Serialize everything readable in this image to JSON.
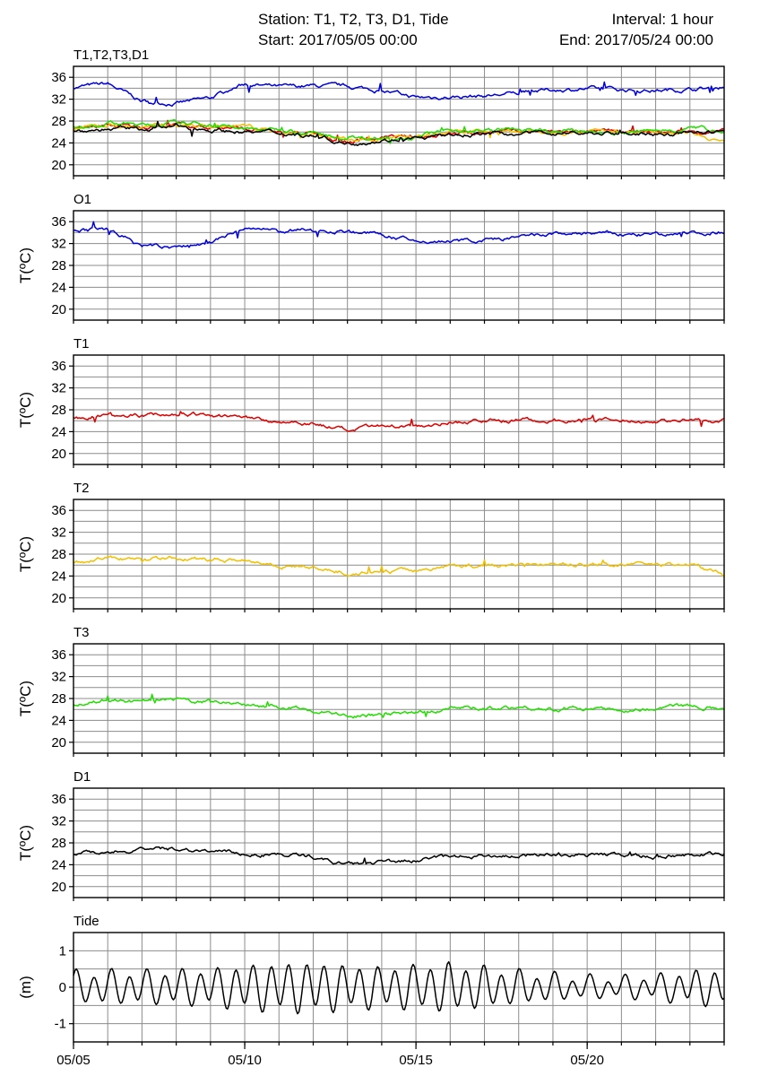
{
  "header": {
    "station": "Station: T1, T2, T3, D1, Tide",
    "start": "Start: 2017/05/05 00:00",
    "interval": "Interval: 1 hour",
    "end": "End: 2017/05/24 00:00"
  },
  "chart_data": [
    {
      "type": "line",
      "title": "T1,T2,T3,D1",
      "ylabel": "",
      "xlim": [
        "2017/05/05 00:00",
        "2017/05/24 00:00"
      ],
      "ylim": [
        18,
        38
      ],
      "yticks": [
        20,
        24,
        28,
        32,
        36
      ],
      "grid": true,
      "x": [
        "05/05",
        "05/06",
        "05/07",
        "05/08",
        "05/09",
        "05/10",
        "05/11",
        "05/12",
        "05/13",
        "05/14",
        "05/15",
        "05/16",
        "05/17",
        "05/18",
        "05/19",
        "05/20",
        "05/21",
        "05/22",
        "05/23",
        "05/24"
      ],
      "series": [
        {
          "color": "#0000dd",
          "values": [
            34.2,
            34.8,
            31.6,
            31.2,
            32.2,
            34.8,
            34.2,
            34.4,
            34.3,
            33.6,
            32.3,
            32.4,
            32.6,
            33.1,
            33.7,
            33.9,
            33.7,
            33.6,
            33.8,
            34.2
          ]
        },
        {
          "color": "#dd0000",
          "values": [
            26.5,
            27.2,
            27.0,
            27.3,
            26.9,
            26.6,
            25.9,
            25.6,
            24.2,
            24.9,
            25.1,
            25.7,
            26.0,
            26.1,
            26.0,
            26.1,
            26.0,
            25.9,
            26.1,
            26.0
          ]
        },
        {
          "color": "#f0c000",
          "values": [
            26.6,
            27.3,
            26.9,
            27.3,
            27.0,
            27.1,
            25.9,
            25.6,
            24.6,
            24.8,
            25.0,
            25.9,
            25.9,
            26.1,
            26.1,
            26.2,
            26.0,
            26.0,
            26.2,
            24.2
          ]
        },
        {
          "color": "#22dd00",
          "values": [
            26.8,
            27.6,
            27.3,
            27.6,
            27.4,
            26.5,
            26.5,
            25.8,
            24.8,
            25.0,
            25.2,
            26.4,
            26.3,
            26.5,
            26.0,
            26.2,
            25.8,
            26.2,
            26.7,
            26.3
          ]
        },
        {
          "color": "#000000",
          "values": [
            26.1,
            26.5,
            26.6,
            27.0,
            26.5,
            26.0,
            25.9,
            25.4,
            23.9,
            24.5,
            24.8,
            25.3,
            25.7,
            25.7,
            25.9,
            25.8,
            25.8,
            25.5,
            25.9,
            26.0
          ]
        }
      ]
    },
    {
      "type": "line",
      "title": "O1",
      "ylabel": "T(ºC)",
      "xlim": [
        "2017/05/05 00:00",
        "2017/05/24 00:00"
      ],
      "ylim": [
        18,
        38
      ],
      "yticks": [
        20,
        24,
        28,
        32,
        36
      ],
      "grid": true,
      "x": [
        "05/05",
        "05/06",
        "05/07",
        "05/08",
        "05/09",
        "05/10",
        "05/11",
        "05/12",
        "05/13",
        "05/14",
        "05/15",
        "05/16",
        "05/17",
        "05/18",
        "05/19",
        "05/20",
        "05/21",
        "05/22",
        "05/23",
        "05/24"
      ],
      "series": [
        {
          "color": "#0000dd",
          "values": [
            34.2,
            34.8,
            31.6,
            31.2,
            32.2,
            34.8,
            34.2,
            34.4,
            34.3,
            33.6,
            32.3,
            32.4,
            32.6,
            33.1,
            33.7,
            33.9,
            33.7,
            33.6,
            33.8,
            34.2
          ]
        }
      ]
    },
    {
      "type": "line",
      "title": "T1",
      "ylabel": "T(ºC)",
      "xlim": [
        "2017/05/05 00:00",
        "2017/05/24 00:00"
      ],
      "ylim": [
        18,
        38
      ],
      "yticks": [
        20,
        24,
        28,
        32,
        36
      ],
      "grid": true,
      "x": [
        "05/05",
        "05/06",
        "05/07",
        "05/08",
        "05/09",
        "05/10",
        "05/11",
        "05/12",
        "05/13",
        "05/14",
        "05/15",
        "05/16",
        "05/17",
        "05/18",
        "05/19",
        "05/20",
        "05/21",
        "05/22",
        "05/23",
        "05/24"
      ],
      "series": [
        {
          "color": "#dd0000",
          "values": [
            26.5,
            27.2,
            27.0,
            27.3,
            26.9,
            26.6,
            25.9,
            25.6,
            24.2,
            24.9,
            25.1,
            25.7,
            26.0,
            26.1,
            26.0,
            26.1,
            26.0,
            25.9,
            26.1,
            26.0
          ]
        }
      ]
    },
    {
      "type": "line",
      "title": "T2",
      "ylabel": "T(ºC)",
      "xlim": [
        "2017/05/05 00:00",
        "2017/05/24 00:00"
      ],
      "ylim": [
        18,
        38
      ],
      "yticks": [
        20,
        24,
        28,
        32,
        36
      ],
      "grid": true,
      "x": [
        "05/05",
        "05/06",
        "05/07",
        "05/08",
        "05/09",
        "05/10",
        "05/11",
        "05/12",
        "05/13",
        "05/14",
        "05/15",
        "05/16",
        "05/17",
        "05/18",
        "05/19",
        "05/20",
        "05/21",
        "05/22",
        "05/23",
        "05/24"
      ],
      "series": [
        {
          "color": "#f0c000",
          "values": [
            26.6,
            27.3,
            26.9,
            27.3,
            27.0,
            27.1,
            25.9,
            25.6,
            24.6,
            24.8,
            25.0,
            25.9,
            25.9,
            26.1,
            26.1,
            26.2,
            26.0,
            26.0,
            26.2,
            24.2
          ]
        }
      ]
    },
    {
      "type": "line",
      "title": "T3",
      "ylabel": "T(ºC)",
      "xlim": [
        "2017/05/05 00:00",
        "2017/05/24 00:00"
      ],
      "ylim": [
        18,
        38
      ],
      "yticks": [
        20,
        24,
        28,
        32,
        36
      ],
      "grid": true,
      "x": [
        "05/05",
        "05/06",
        "05/07",
        "05/08",
        "05/09",
        "05/10",
        "05/11",
        "05/12",
        "05/13",
        "05/14",
        "05/15",
        "05/16",
        "05/17",
        "05/18",
        "05/19",
        "05/20",
        "05/21",
        "05/22",
        "05/23",
        "05/24"
      ],
      "series": [
        {
          "color": "#22dd00",
          "values": [
            26.8,
            27.6,
            27.3,
            27.6,
            27.4,
            26.5,
            26.5,
            25.8,
            24.8,
            25.0,
            25.2,
            26.4,
            26.3,
            26.5,
            26.0,
            26.2,
            25.8,
            26.2,
            26.7,
            26.3
          ]
        }
      ]
    },
    {
      "type": "line",
      "title": "D1",
      "ylabel": "T(ºC)",
      "xlim": [
        "2017/05/05 00:00",
        "2017/05/24 00:00"
      ],
      "ylim": [
        18,
        38
      ],
      "yticks": [
        20,
        24,
        28,
        32,
        36
      ],
      "grid": true,
      "x": [
        "05/05",
        "05/06",
        "05/07",
        "05/08",
        "05/09",
        "05/10",
        "05/11",
        "05/12",
        "05/13",
        "05/14",
        "05/15",
        "05/16",
        "05/17",
        "05/18",
        "05/19",
        "05/20",
        "05/21",
        "05/22",
        "05/23",
        "05/24"
      ],
      "series": [
        {
          "color": "#000000",
          "values": [
            26.1,
            26.5,
            26.6,
            27.0,
            26.5,
            26.0,
            25.9,
            25.4,
            23.9,
            24.5,
            24.8,
            25.3,
            25.7,
            25.7,
            25.9,
            25.8,
            25.8,
            25.5,
            25.9,
            26.0
          ]
        }
      ]
    },
    {
      "type": "line",
      "title": "Tide",
      "ylabel": "(m)",
      "xlim": [
        "2017/05/05 00:00",
        "2017/05/24 00:00"
      ],
      "ylim": [
        -1.5,
        1.5
      ],
      "yticks": [
        -1,
        0,
        1
      ],
      "grid": true,
      "xticks": [
        "05/05",
        "05/10",
        "05/15",
        "05/20"
      ],
      "tide_model": {
        "mean_m": 0.0,
        "period_hours": 12.42,
        "amplitude_m": [
          0.38,
          0.4,
          0.4,
          0.42,
          0.45,
          0.55,
          0.6,
          0.62,
          0.55,
          0.5,
          0.55,
          0.6,
          0.5,
          0.4,
          0.32,
          0.26,
          0.25,
          0.3,
          0.4,
          0.45
        ]
      },
      "series": [
        {
          "color": "#000000"
        }
      ]
    }
  ]
}
